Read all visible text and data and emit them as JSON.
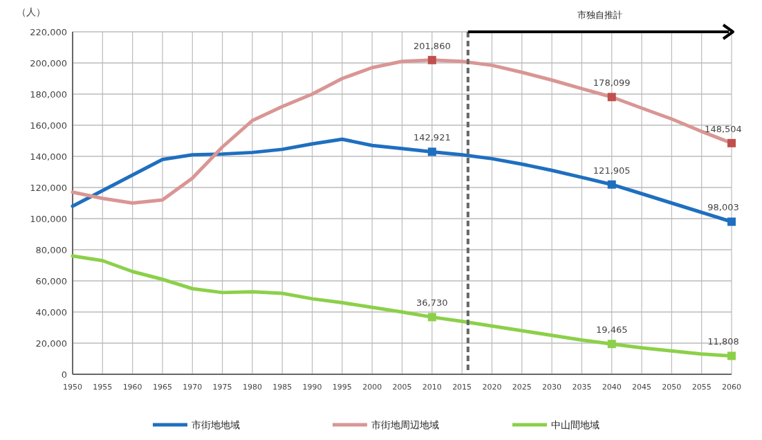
{
  "chart_data": {
    "type": "line",
    "ylabel": "（人）",
    "x": [
      1950,
      1955,
      1960,
      1965,
      1970,
      1975,
      1980,
      1985,
      1990,
      1995,
      2000,
      2005,
      2010,
      2015,
      2020,
      2025,
      2030,
      2035,
      2040,
      2045,
      2050,
      2055,
      2060
    ],
    "xlim": [
      1950,
      2060
    ],
    "xticks": [
      1950,
      1955,
      1960,
      1965,
      1970,
      1975,
      1980,
      1985,
      1990,
      1995,
      2000,
      2005,
      2010,
      2015,
      2020,
      2025,
      2030,
      2035,
      2040,
      2045,
      2050,
      2055,
      2060
    ],
    "ylim": [
      0,
      220000
    ],
    "yticks": [
      0,
      {
        "value": 20000,
        "label": "20,000"
      },
      {
        "value": 40000,
        "label": "40,000"
      },
      {
        "value": 60000,
        "label": "60,000"
      },
      {
        "value": 80000,
        "label": "80,000"
      },
      {
        "value": 100000,
        "label": "100,000"
      },
      {
        "value": 120000,
        "label": "120,000"
      },
      {
        "value": 140000,
        "label": "140,000"
      },
      {
        "value": 160000,
        "label": "160,000"
      },
      {
        "value": 180000,
        "label": "180,000"
      },
      {
        "value": 200000,
        "label": "200,000"
      },
      {
        "value": 220000,
        "label": "220,000"
      }
    ],
    "grid": true,
    "legend": "bottom",
    "series": [
      {
        "name": "市街地地域",
        "color": "#1f6fc0",
        "values": [
          108000,
          118000,
          128000,
          138000,
          141000,
          141500,
          142500,
          144500,
          148000,
          151000,
          147000,
          145000,
          142921,
          141000,
          138500,
          135000,
          131000,
          126500,
          121905,
          116000,
          110000,
          104000,
          98003
        ]
      },
      {
        "name": "市街地周辺地域",
        "color": "#d99694",
        "values": [
          117000,
          113000,
          110000,
          112000,
          126000,
          146000,
          163000,
          172000,
          180000,
          190000,
          197000,
          201000,
          201860,
          201000,
          198500,
          194000,
          189000,
          183500,
          178099,
          171000,
          164000,
          156000,
          148504
        ]
      },
      {
        "name": "中山間地域",
        "color": "#8cd04a",
        "values": [
          76000,
          73000,
          66000,
          61000,
          55000,
          52500,
          53000,
          52000,
          48500,
          46000,
          43000,
          40000,
          36730,
          34000,
          31000,
          28000,
          25000,
          22000,
          19465,
          17000,
          15000,
          13000,
          11808
        ]
      },
      {
        "type": "scatter",
        "marker": "square",
        "color": "#1f6fc0",
        "x": [
          2010,
          2040,
          2060
        ],
        "values": [
          142921,
          121905,
          98003
        ],
        "value_labels": [
          "142,921",
          "121,905",
          "98,003"
        ]
      },
      {
        "type": "scatter",
        "marker": "square",
        "color": "#c0504d",
        "x": [
          2010,
          2040,
          2060
        ],
        "values": [
          201860,
          178099,
          148504
        ],
        "value_labels": [
          "201,860",
          "178,099",
          "148,504"
        ]
      },
      {
        "type": "scatter",
        "marker": "square",
        "color": "#8cd04a",
        "x": [
          2010,
          2040,
          2060
        ],
        "values": [
          36730,
          19465,
          11808
        ],
        "value_labels": [
          "36,730",
          "19,465",
          "11,808"
        ]
      }
    ],
    "ref_lines": [
      {
        "axis": "x",
        "value": 2016,
        "color": "#666666",
        "line_style": "dashed"
      }
    ],
    "annotations": [
      "市独自推計"
    ]
  }
}
